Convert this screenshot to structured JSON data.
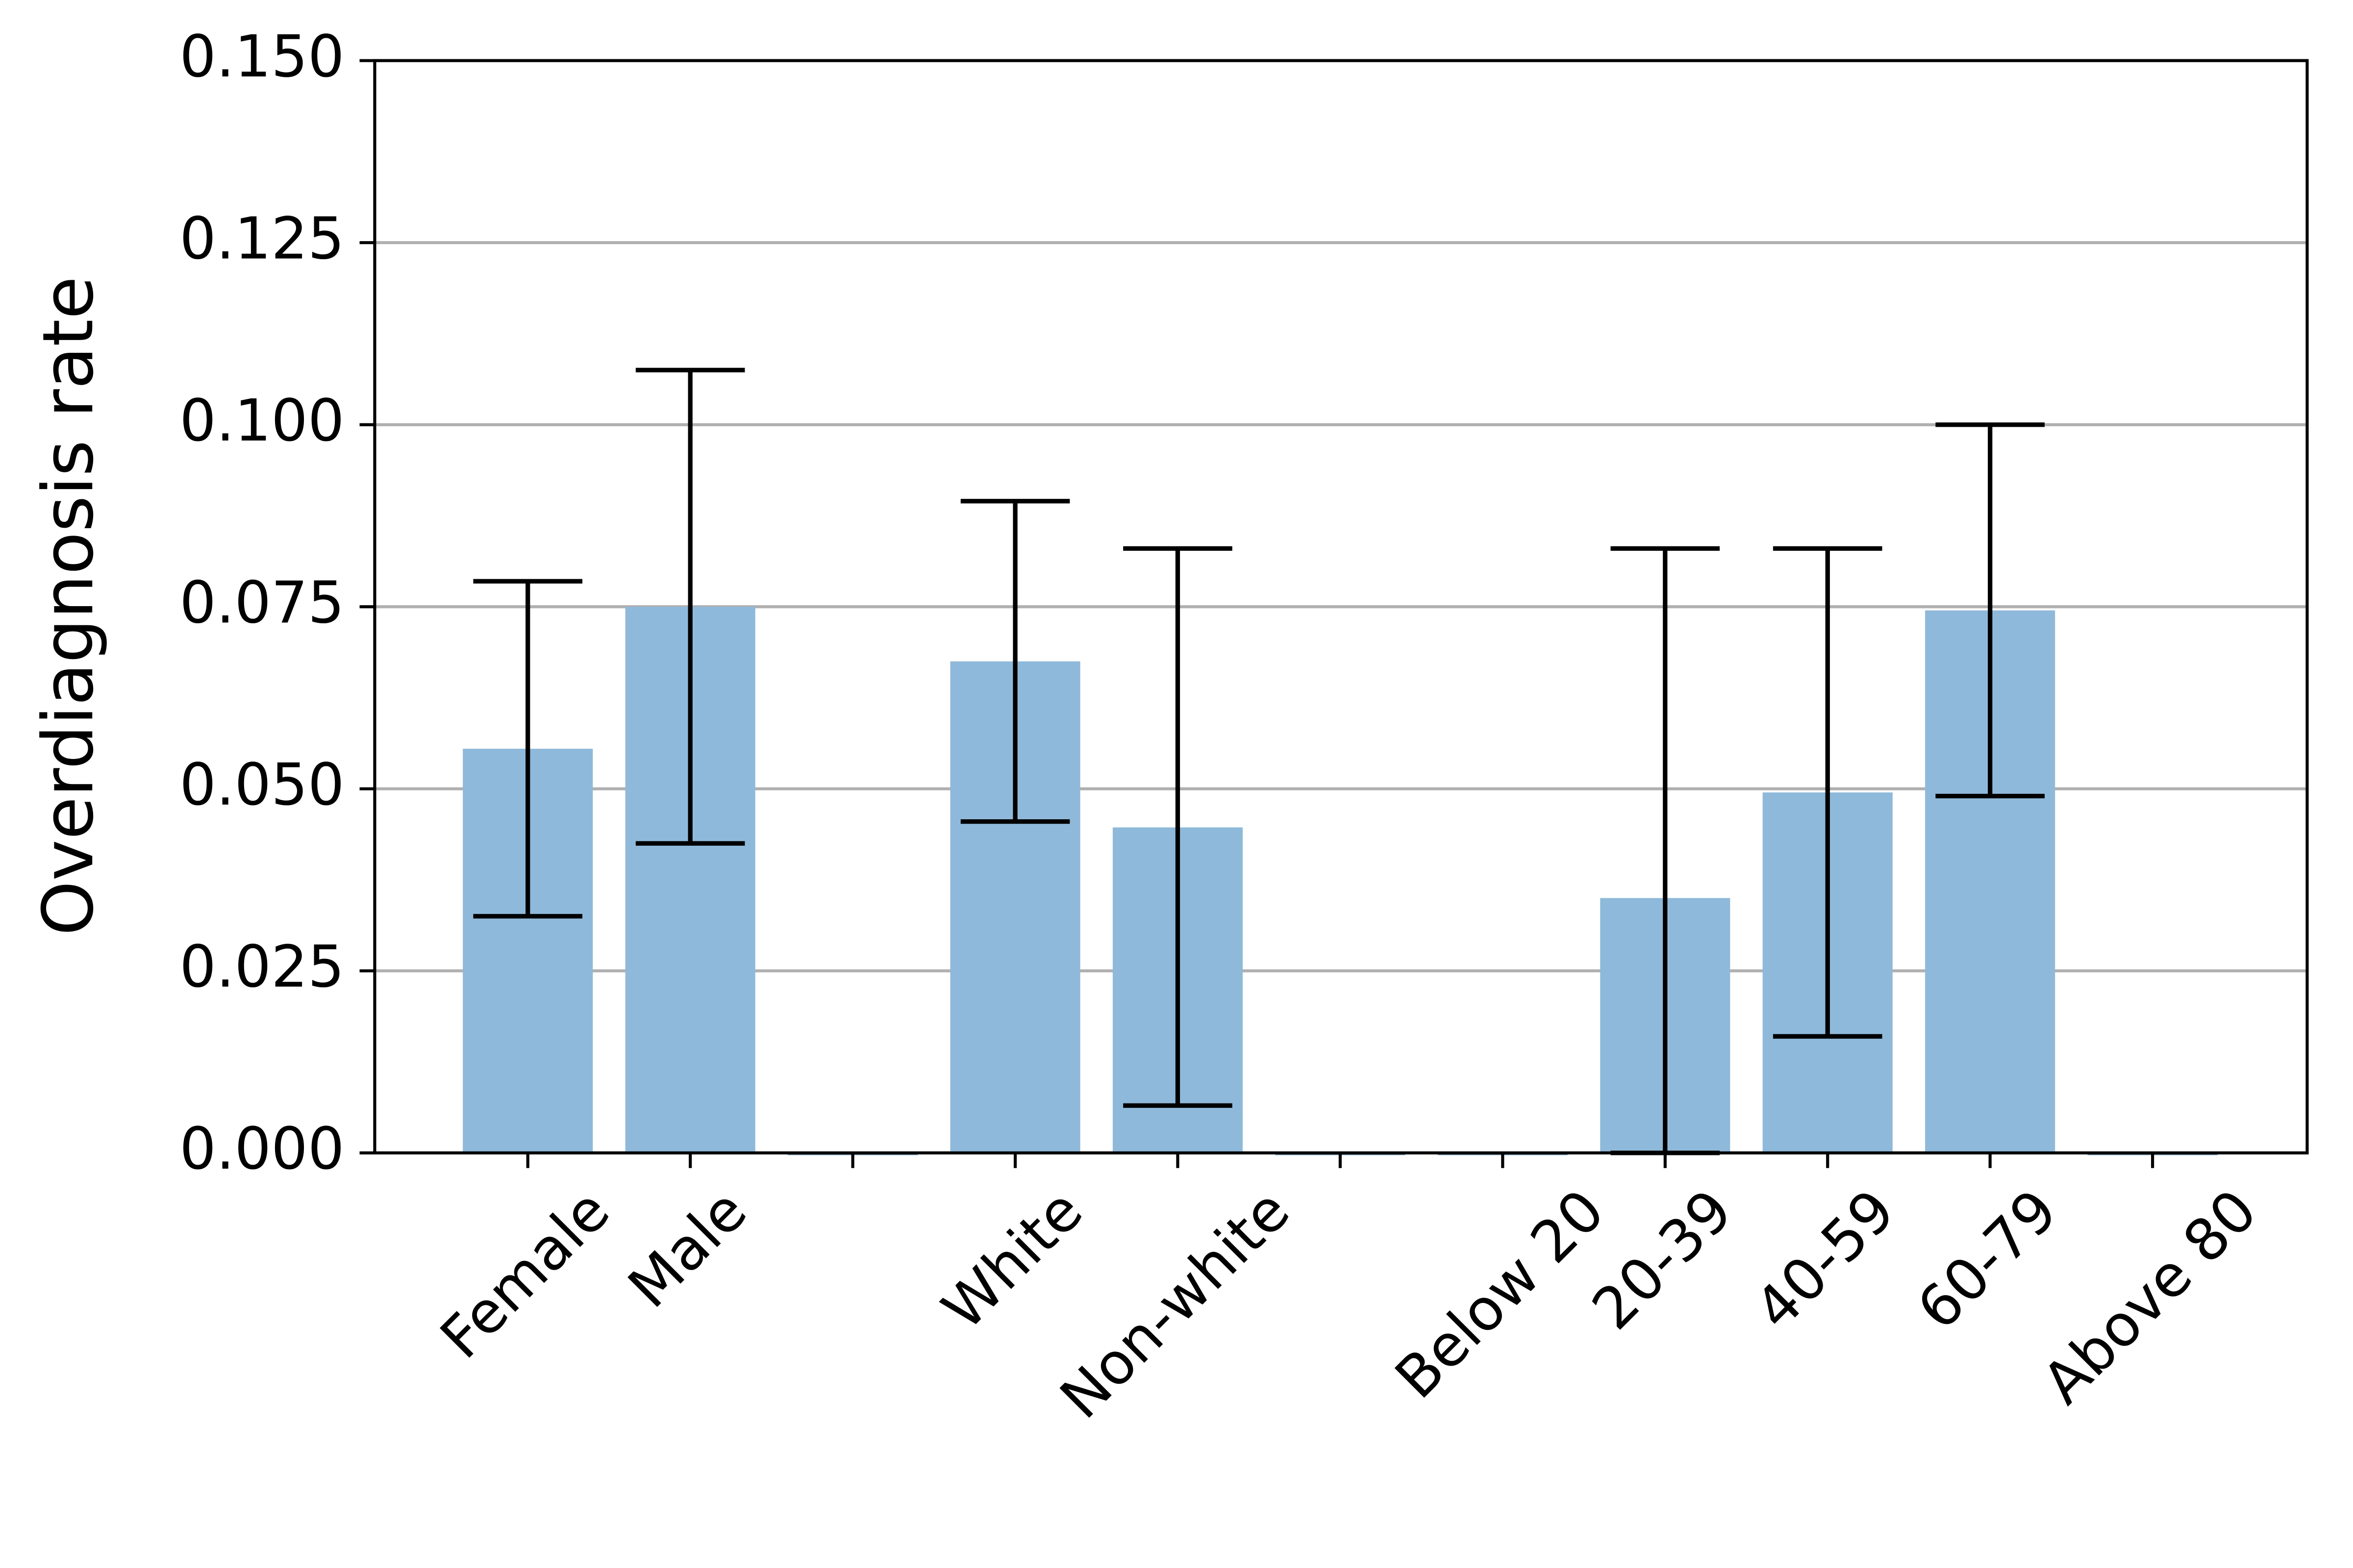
{
  "chart_data": {
    "type": "bar",
    "y_label": "Overdiagnosis rate",
    "categories": [
      "Female",
      "Male",
      null,
      "White",
      "Non-white",
      null,
      "Below 20",
      "20-39",
      "40-59",
      "60-79",
      "Above 80"
    ],
    "values": [
      0.0555,
      0.075,
      0,
      0.0675,
      0.0447,
      0,
      0,
      0.035,
      0.0495,
      0.0745,
      0
    ],
    "ci_lower": [
      0.0325,
      0.0425,
      null,
      0.0455,
      0.0065,
      null,
      null,
      0,
      0.016,
      0.049,
      null
    ],
    "ci_upper": [
      0.0785,
      0.1075,
      null,
      0.0895,
      0.083,
      null,
      null,
      0.083,
      0.083,
      0.1,
      null
    ],
    "color": "#8fb9da",
    "ylim": [
      0,
      0.15
    ],
    "yticks": [
      {
        "value": 0,
        "label": "0.000"
      },
      {
        "value": 0.025,
        "label": "0.025"
      },
      {
        "value": 0.05,
        "label": "0.050"
      },
      {
        "value": 0.075,
        "label": "0.075"
      },
      {
        "value": 0.1,
        "label": "0.100"
      },
      {
        "value": 0.125,
        "label": "0.125"
      },
      {
        "value": 0.15,
        "label": "0.150"
      }
    ],
    "grid": true
  }
}
